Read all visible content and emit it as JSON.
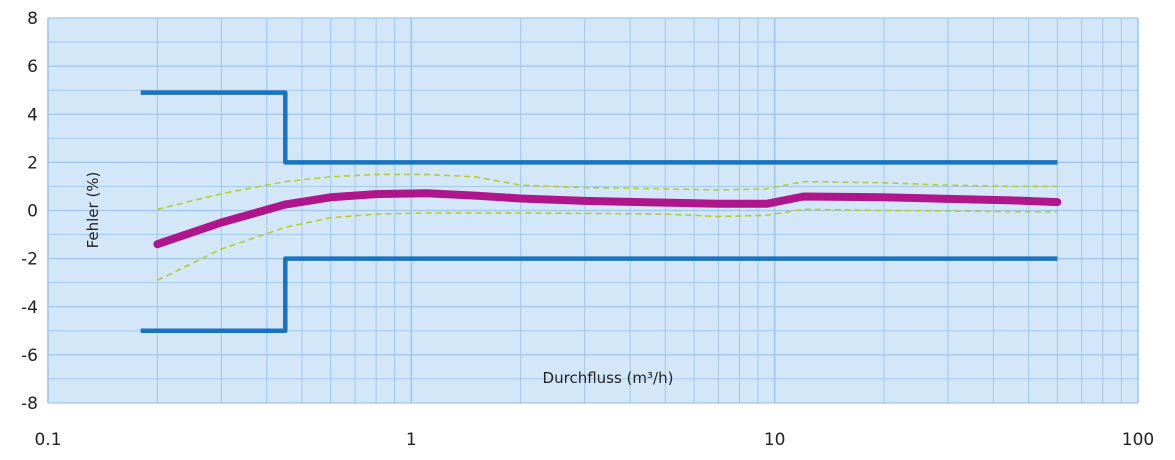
{
  "chart_data": {
    "type": "line",
    "xscale": "log",
    "xlim": [
      0.1,
      100
    ],
    "ylim": [
      -8,
      8
    ],
    "xticks": [
      "0.1",
      "1",
      "10",
      "100"
    ],
    "yticks": [
      "8",
      "6",
      "4",
      "2",
      "0",
      "-2",
      "-4",
      "-6",
      "-8"
    ],
    "xlabel": "Durchfluss (m³/h)",
    "ylabel": "Fehler (%)",
    "grid": true,
    "colors": {
      "plot_background": "#d4e7f9",
      "grid": "#9fc6ea",
      "limits": "#1a73bf",
      "error_curve": "#b0168c",
      "tolerance_band": "#b4cc30"
    },
    "series": [
      {
        "x": [
          0.18,
          0.45,
          0.45,
          60
        ],
        "y": [
          4.9,
          4.9,
          2.0,
          2.0
        ]
      },
      {
        "x": [
          0.18,
          0.45,
          0.45,
          60
        ],
        "y": [
          -5.0,
          -5.0,
          -2.0,
          -2.0
        ]
      },
      {
        "x": [
          0.2,
          0.3,
          0.45,
          0.6,
          0.8,
          1.1,
          1.5,
          2,
          3,
          5,
          7,
          9.5,
          12,
          20,
          30,
          45,
          60
        ],
        "y": [
          -1.4,
          -0.5,
          0.25,
          0.55,
          0.68,
          0.72,
          0.62,
          0.5,
          0.4,
          0.33,
          0.28,
          0.28,
          0.58,
          0.55,
          0.48,
          0.42,
          0.35
        ]
      },
      {
        "x": [
          0.2,
          0.3,
          0.45,
          0.6,
          0.8,
          1.1,
          1.5,
          2,
          3,
          5,
          7,
          9.5,
          12,
          20,
          30,
          45,
          60
        ],
        "y": [
          0.05,
          0.7,
          1.2,
          1.4,
          1.5,
          1.5,
          1.4,
          1.05,
          0.95,
          0.9,
          0.85,
          0.9,
          1.2,
          1.15,
          1.05,
          1.0,
          1.0
        ]
      },
      {
        "x": [
          0.2,
          0.3,
          0.45,
          0.6,
          0.8,
          1.1,
          1.5,
          2,
          3,
          5,
          7,
          9.5,
          12,
          20,
          30,
          45,
          60
        ],
        "y": [
          -2.9,
          -1.6,
          -0.7,
          -0.3,
          -0.15,
          -0.1,
          -0.1,
          -0.1,
          -0.12,
          -0.15,
          -0.25,
          -0.2,
          0.05,
          0.0,
          -0.02,
          -0.05,
          -0.05
        ]
      }
    ]
  }
}
